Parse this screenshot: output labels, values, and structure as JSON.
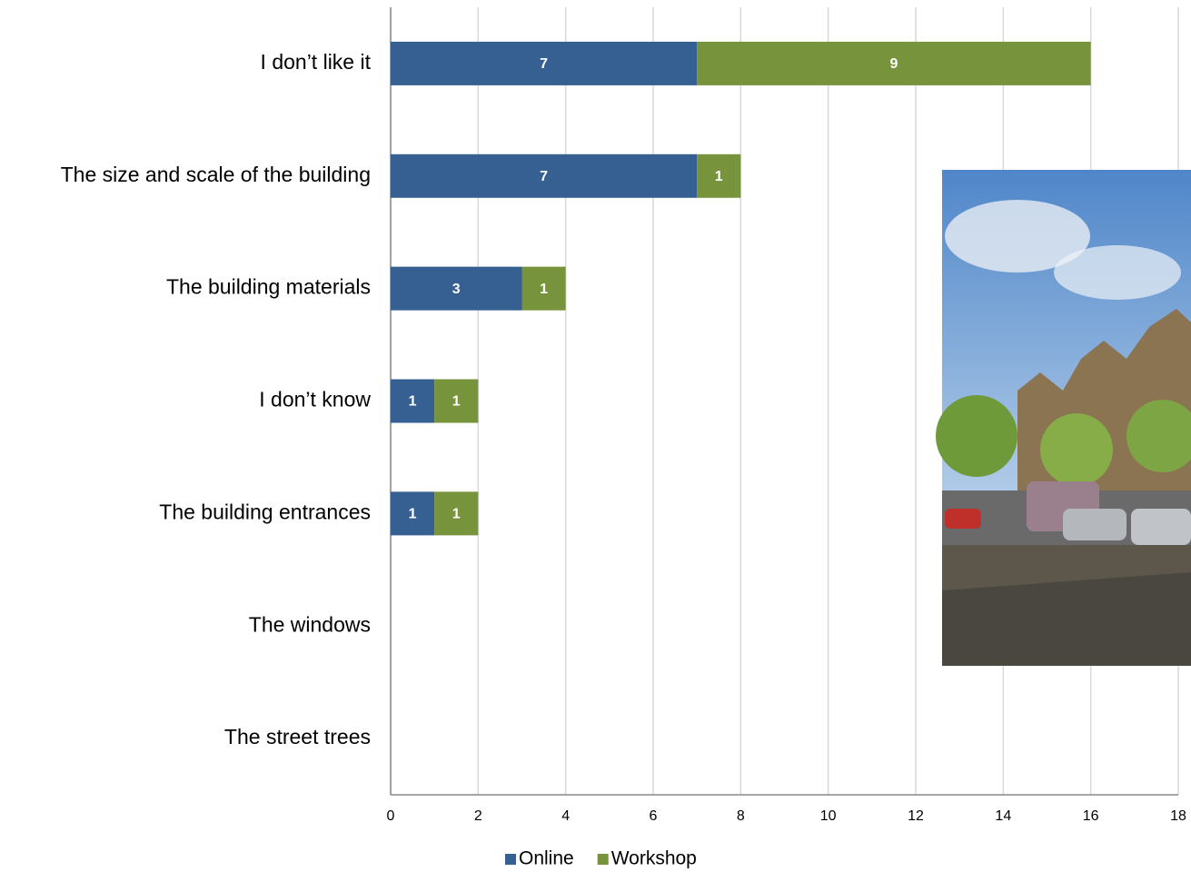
{
  "chart_data": {
    "type": "stacked-bar-horizontal",
    "categories": [
      "I don’t like it",
      "The size and scale of the building",
      "The building materials",
      "I don’t know",
      "The building entrances",
      "The windows",
      "The street trees"
    ],
    "series": [
      {
        "name": "Online",
        "color": "#366092",
        "values": [
          7,
          7,
          3,
          1,
          1,
          0,
          0
        ]
      },
      {
        "name": "Workshop",
        "color": "#77933c",
        "values": [
          9,
          1,
          1,
          1,
          1,
          0,
          0
        ]
      }
    ],
    "xlim": [
      0,
      18
    ],
    "xticks": [
      0,
      2,
      4,
      6,
      8,
      10,
      12,
      14,
      16,
      18
    ],
    "grid": true,
    "legend": "bottom"
  }
}
